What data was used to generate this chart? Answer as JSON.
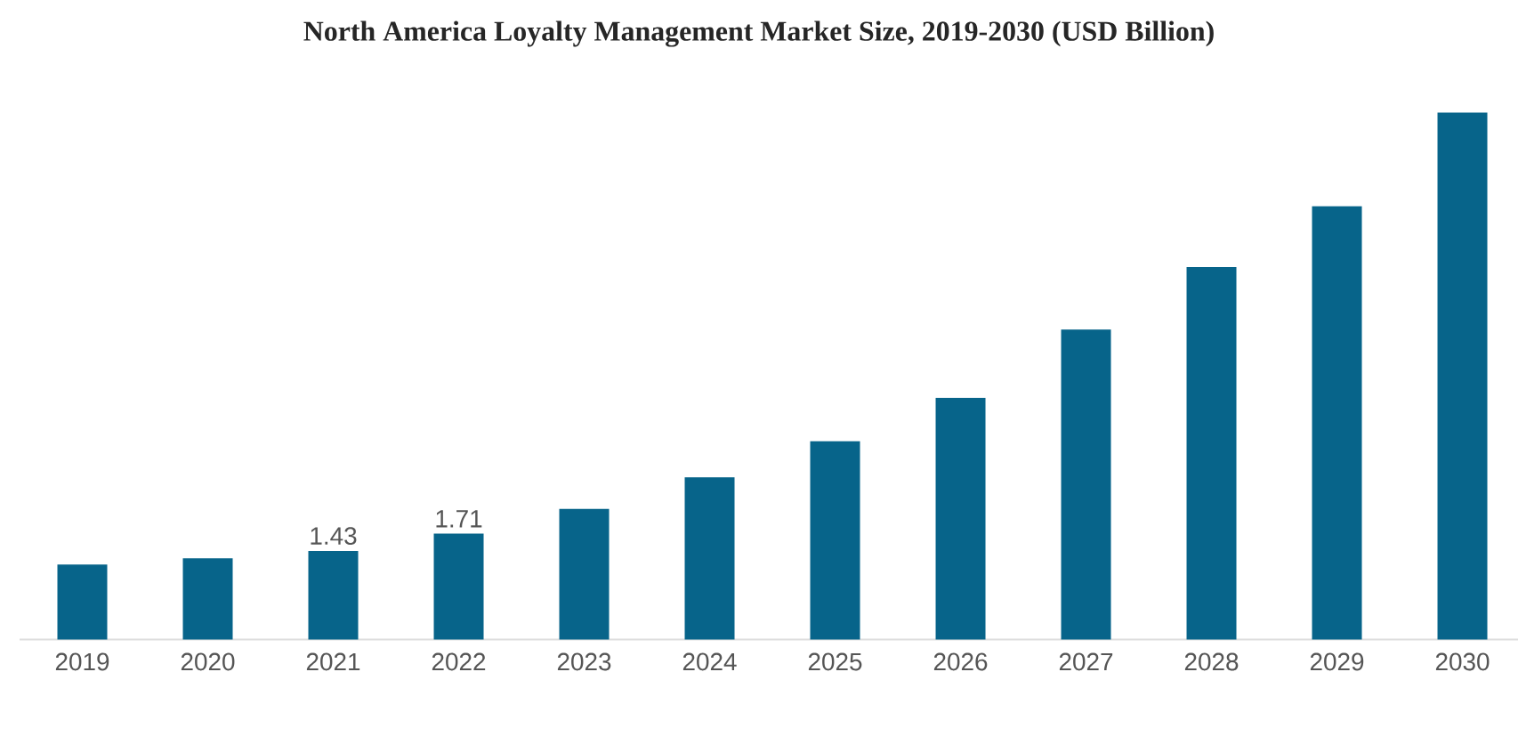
{
  "chart_data": {
    "type": "bar",
    "title": "North America Loyalty Management Market Size, 2019-2030 (USD Billion)",
    "categories": [
      "2019",
      "2020",
      "2021",
      "2022",
      "2023",
      "2024",
      "2025",
      "2026",
      "2027",
      "2028",
      "2029",
      "2030"
    ],
    "values": [
      1.21,
      1.31,
      1.43,
      1.71,
      2.11,
      2.62,
      3.2,
      3.9,
      5.0,
      6.01,
      6.99,
      8.5
    ],
    "value_labels": [
      null,
      null,
      "1.43",
      "1.71",
      null,
      null,
      null,
      null,
      null,
      null,
      null,
      null
    ],
    "color": "#07648a",
    "tick_labels": "x"
  }
}
